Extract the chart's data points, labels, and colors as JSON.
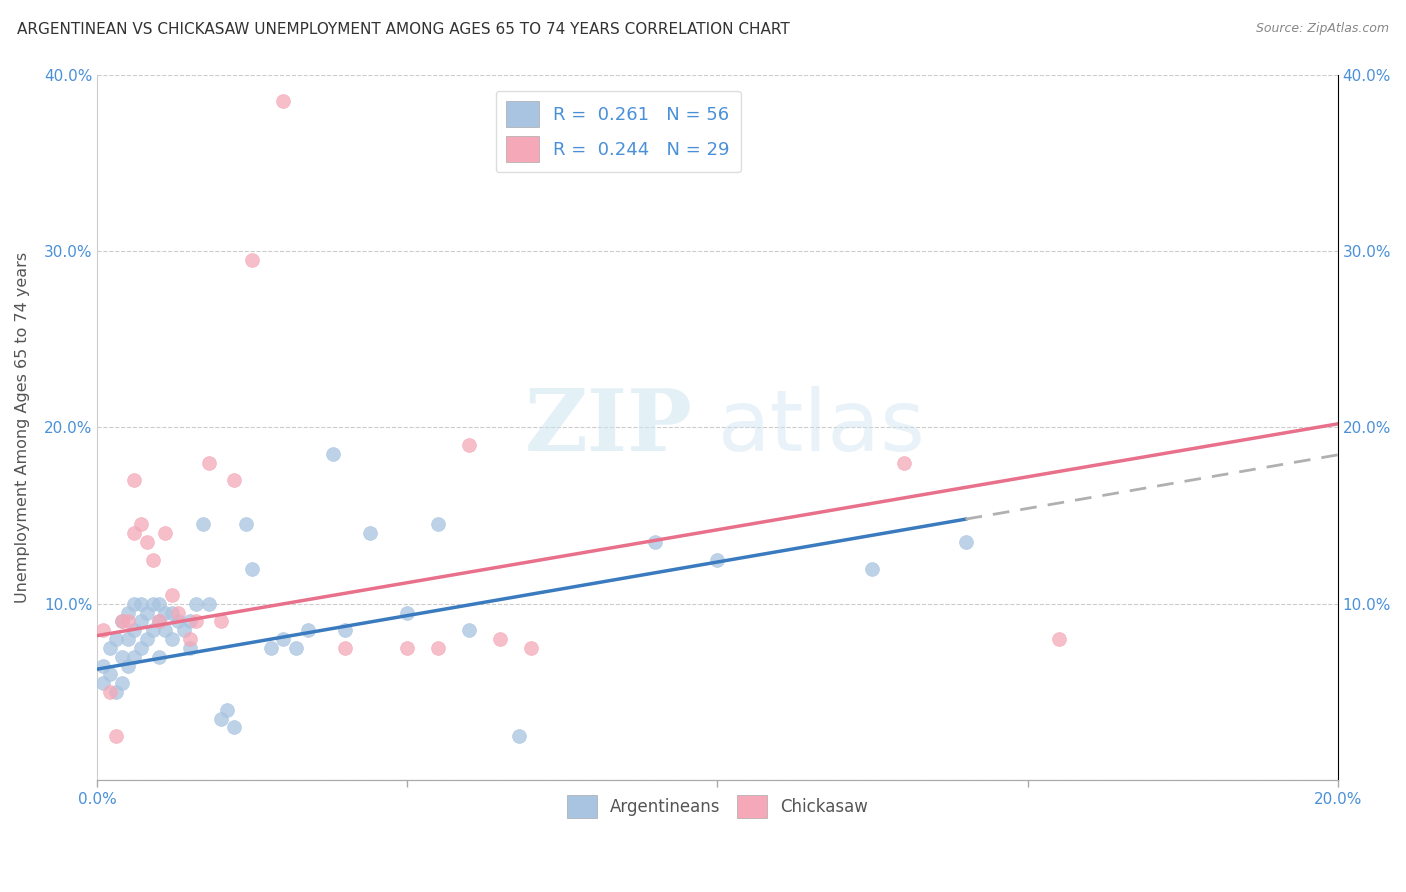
{
  "title": "ARGENTINEAN VS CHICKASAW UNEMPLOYMENT AMONG AGES 65 TO 74 YEARS CORRELATION CHART",
  "source": "Source: ZipAtlas.com",
  "ylabel": "Unemployment Among Ages 65 to 74 years",
  "xlim": [
    0.0,
    0.2
  ],
  "ylim": [
    0.0,
    0.4
  ],
  "xticks": [
    0.0,
    0.05,
    0.1,
    0.15,
    0.2
  ],
  "yticks": [
    0.0,
    0.1,
    0.2,
    0.3,
    0.4
  ],
  "xtick_labels": [
    "0.0%",
    "",
    "",
    "",
    "20.0%"
  ],
  "ytick_labels_left": [
    "",
    "10.0%",
    "20.0%",
    "30.0%",
    "40.0%"
  ],
  "ytick_labels_right": [
    "",
    "10.0%",
    "20.0%",
    "30.0%",
    "40.0%"
  ],
  "argentinean_color": "#a8c4e0",
  "chickasaw_color": "#f4a8b8",
  "argentinean_line_color": "#3a7bbf",
  "chickasaw_line_color": "#e8708a",
  "trend_extension_color": "#b0b0b0",
  "legend_R_argentinean": "0.261",
  "legend_N_argentinean": "56",
  "legend_R_chickasaw": "0.244",
  "legend_N_chickasaw": "29",
  "watermark_zip": "ZIP",
  "watermark_atlas": "atlas",
  "argentinean_x": [
    0.001,
    0.001,
    0.002,
    0.002,
    0.003,
    0.003,
    0.004,
    0.004,
    0.004,
    0.005,
    0.005,
    0.005,
    0.006,
    0.006,
    0.006,
    0.007,
    0.007,
    0.007,
    0.008,
    0.008,
    0.009,
    0.009,
    0.01,
    0.01,
    0.01,
    0.011,
    0.011,
    0.012,
    0.012,
    0.013,
    0.014,
    0.015,
    0.015,
    0.016,
    0.017,
    0.018,
    0.02,
    0.021,
    0.022,
    0.024,
    0.025,
    0.028,
    0.03,
    0.032,
    0.034,
    0.038,
    0.04,
    0.044,
    0.05,
    0.055,
    0.06,
    0.068,
    0.09,
    0.1,
    0.125,
    0.14
  ],
  "argentinean_y": [
    0.055,
    0.065,
    0.06,
    0.075,
    0.05,
    0.08,
    0.055,
    0.07,
    0.09,
    0.065,
    0.08,
    0.095,
    0.07,
    0.085,
    0.1,
    0.075,
    0.09,
    0.1,
    0.08,
    0.095,
    0.085,
    0.1,
    0.07,
    0.09,
    0.1,
    0.085,
    0.095,
    0.08,
    0.095,
    0.09,
    0.085,
    0.075,
    0.09,
    0.1,
    0.145,
    0.1,
    0.035,
    0.04,
    0.03,
    0.145,
    0.12,
    0.075,
    0.08,
    0.075,
    0.085,
    0.185,
    0.085,
    0.14,
    0.095,
    0.145,
    0.085,
    0.025,
    0.135,
    0.125,
    0.12,
    0.135
  ],
  "chickasaw_x": [
    0.001,
    0.002,
    0.003,
    0.004,
    0.005,
    0.006,
    0.006,
    0.007,
    0.008,
    0.009,
    0.01,
    0.011,
    0.012,
    0.013,
    0.015,
    0.016,
    0.018,
    0.02,
    0.022,
    0.025,
    0.03,
    0.04,
    0.05,
    0.055,
    0.06,
    0.065,
    0.07,
    0.13,
    0.155
  ],
  "chickasaw_y": [
    0.085,
    0.05,
    0.025,
    0.09,
    0.09,
    0.14,
    0.17,
    0.145,
    0.135,
    0.125,
    0.09,
    0.14,
    0.105,
    0.095,
    0.08,
    0.09,
    0.18,
    0.09,
    0.17,
    0.295,
    0.385,
    0.075,
    0.075,
    0.075,
    0.19,
    0.08,
    0.075,
    0.18,
    0.08
  ],
  "trend_argentinean_x0": 0.0,
  "trend_argentinean_y0": 0.063,
  "trend_argentinean_x1": 0.14,
  "trend_argentinean_y1": 0.148,
  "trend_chickasaw_x0": 0.0,
  "trend_chickasaw_y0": 0.082,
  "trend_chickasaw_x1": 0.2,
  "trend_chickasaw_y1": 0.202
}
